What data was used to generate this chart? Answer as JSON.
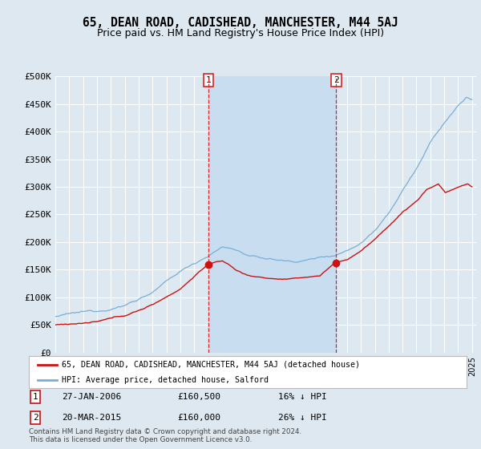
{
  "title": "65, DEAN ROAD, CADISHEAD, MANCHESTER, M44 5AJ",
  "subtitle": "Price paid vs. HM Land Registry's House Price Index (HPI)",
  "ylim": [
    0,
    500000
  ],
  "yticks": [
    0,
    50000,
    100000,
    150000,
    200000,
    250000,
    300000,
    350000,
    400000,
    450000,
    500000
  ],
  "ytick_labels": [
    "£0",
    "£50K",
    "£100K",
    "£150K",
    "£200K",
    "£250K",
    "£300K",
    "£350K",
    "£400K",
    "£450K",
    "£500K"
  ],
  "background_color": "#dde8f0",
  "grid_color": "#ffffff",
  "hpi_color": "#7aaed6",
  "price_color": "#cc1111",
  "vline_color": "#dd2222",
  "shade_color": "#c8ddf0",
  "sale1_date": "27-JAN-2006",
  "sale1_price": "£160,500",
  "sale1_hpi": "16% ↓ HPI",
  "sale2_date": "20-MAR-2015",
  "sale2_price": "£160,000",
  "sale2_hpi": "26% ↓ HPI",
  "legend_label_price": "65, DEAN ROAD, CADISHEAD, MANCHESTER, M44 5AJ (detached house)",
  "legend_label_hpi": "HPI: Average price, detached house, Salford",
  "footer": "Contains HM Land Registry data © Crown copyright and database right 2024.\nThis data is licensed under the Open Government Licence v3.0.",
  "title_fontsize": 10.5,
  "subtitle_fontsize": 9
}
